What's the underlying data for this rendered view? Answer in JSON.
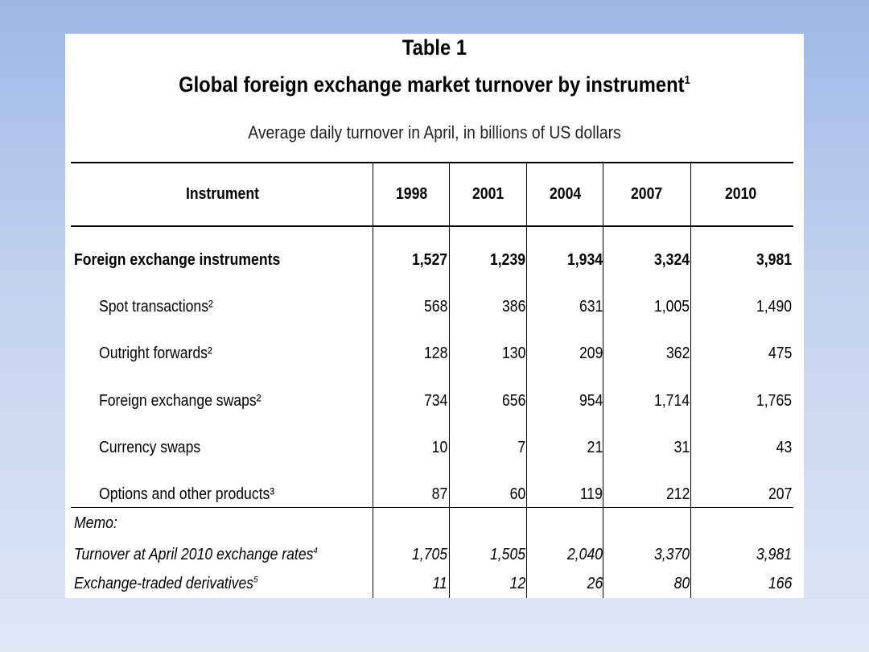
{
  "table_label": "Table 1",
  "title": "Global foreign exchange market turnover by instrument",
  "title_sup": "1",
  "caption": "Average daily turnover in April, in billions of US dollars",
  "columns": [
    "Instrument",
    "1998",
    "2001",
    "2004",
    "2007",
    "2010"
  ],
  "main_rows": [
    {
      "label": "Foreign exchange instruments",
      "values": [
        "1,527",
        "1,239",
        "1,934",
        "3,324",
        "3,981"
      ]
    },
    {
      "label": "Spot transactions²",
      "values": [
        "568",
        "386",
        "631",
        "1,005",
        "1,490"
      ]
    },
    {
      "label": "Outright forwards²",
      "values": [
        "128",
        "130",
        "209",
        "362",
        "475"
      ]
    },
    {
      "label": "Foreign exchange swaps²",
      "values": [
        "734",
        "656",
        "954",
        "1,714",
        "1,765"
      ]
    },
    {
      "label": "Currency swaps",
      "values": [
        "10",
        "7",
        "21",
        "31",
        "43"
      ]
    },
    {
      "label": "Options and other products³",
      "values": [
        "87",
        "60",
        "119",
        "212",
        "207"
      ]
    }
  ],
  "memo_label": "Memo:",
  "memo_rows": [
    {
      "label": "Turnover at April 2010 exchange rates",
      "sup": "4",
      "values": [
        "1,705",
        "1,505",
        "2,040",
        "3,370",
        "3,981"
      ]
    },
    {
      "label": "Exchange-traded derivatives",
      "sup": "5",
      "values": [
        "11",
        "12",
        "26",
        "80",
        "166"
      ]
    }
  ]
}
